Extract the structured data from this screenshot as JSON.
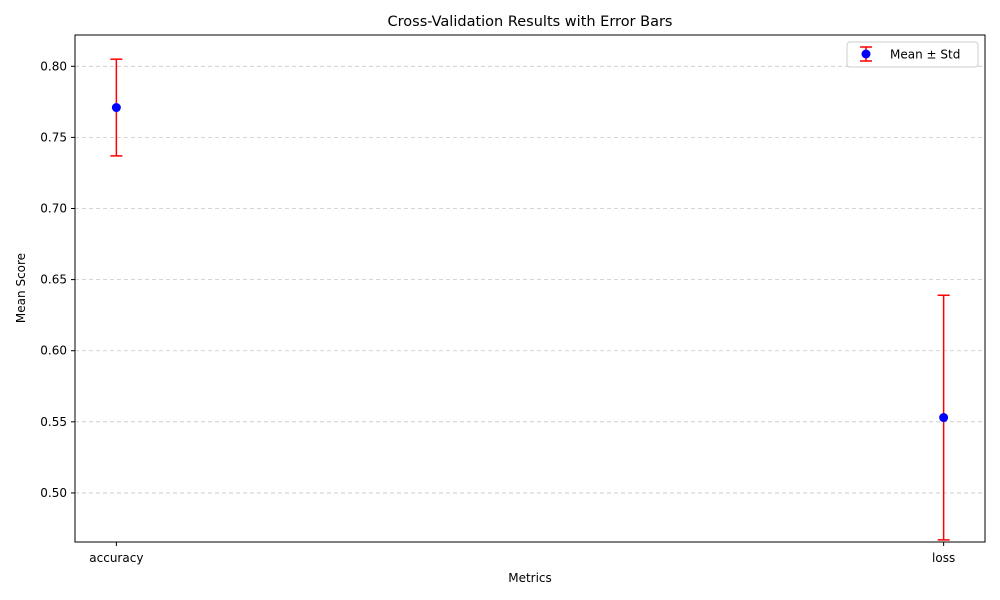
{
  "chart_data": {
    "type": "scatter",
    "title": "Cross-Validation Results with Error Bars",
    "xlabel": "Metrics",
    "ylabel": "Mean Score",
    "categories": [
      "accuracy",
      "loss"
    ],
    "series": [
      {
        "name": "Mean ± Std",
        "values": [
          0.771,
          0.553
        ],
        "std": [
          0.034,
          0.086
        ]
      }
    ],
    "ylim": [
      0.4655,
      0.822
    ],
    "yticks": [
      0.5,
      0.55,
      0.6,
      0.65,
      0.7,
      0.75,
      0.8
    ],
    "ytick_labels": [
      "0.50",
      "0.55",
      "0.60",
      "0.65",
      "0.70",
      "0.75",
      "0.80"
    ],
    "grid": "y-dashed",
    "legend_position": "top-right",
    "colors": {
      "marker": "#0000ff",
      "errorbar": "#ff0000",
      "grid": "#c8c8c8"
    }
  }
}
